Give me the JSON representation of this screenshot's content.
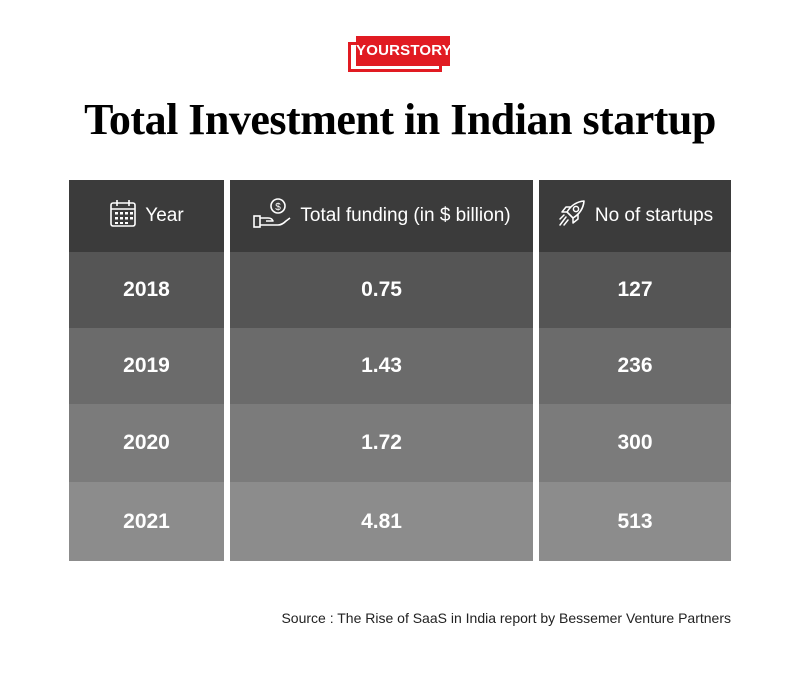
{
  "brand": {
    "logo_text": "YOURSTORY",
    "accent_color": "#e11b22"
  },
  "chart_data": {
    "type": "table",
    "title": "Total Investment in Indian startup",
    "columns": [
      {
        "label": "Year",
        "icon": "calendar-icon"
      },
      {
        "label": "Total funding (in $ billion)",
        "icon": "money-hand-icon"
      },
      {
        "label": "No of startups",
        "icon": "rocket-icon"
      }
    ],
    "rows": [
      {
        "year": "2018",
        "funding": "0.75",
        "startups": "127"
      },
      {
        "year": "2019",
        "funding": "1.43",
        "startups": "236"
      },
      {
        "year": "2020",
        "funding": "1.72",
        "startups": "300"
      },
      {
        "year": "2021",
        "funding": "4.81",
        "startups": "513"
      }
    ],
    "source": "Source : The Rise of SaaS in India report by Bessemer Venture Partners"
  }
}
